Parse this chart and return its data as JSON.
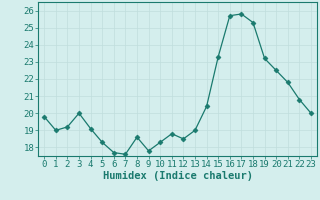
{
  "x": [
    0,
    1,
    2,
    3,
    4,
    5,
    6,
    7,
    8,
    9,
    10,
    11,
    12,
    13,
    14,
    15,
    16,
    17,
    18,
    19,
    20,
    21,
    22,
    23
  ],
  "y": [
    19.8,
    19.0,
    19.2,
    20.0,
    19.1,
    18.3,
    17.7,
    17.6,
    18.6,
    17.8,
    18.3,
    18.8,
    18.5,
    19.0,
    20.4,
    23.3,
    25.7,
    25.8,
    25.3,
    23.2,
    22.5,
    21.8,
    20.8,
    20.0
  ],
  "line_color": "#1a7a6e",
  "marker": "D",
  "marker_size": 2.5,
  "bg_color": "#d4eeed",
  "grid_color": "#c0dedd",
  "xlabel": "Humidex (Indice chaleur)",
  "ylim": [
    17.5,
    26.5
  ],
  "xlim": [
    -0.5,
    23.5
  ],
  "yticks": [
    18,
    19,
    20,
    21,
    22,
    23,
    24,
    25,
    26
  ],
  "xticks": [
    0,
    1,
    2,
    3,
    4,
    5,
    6,
    7,
    8,
    9,
    10,
    11,
    12,
    13,
    14,
    15,
    16,
    17,
    18,
    19,
    20,
    21,
    22,
    23
  ],
  "tick_color": "#1a7a6e",
  "spine_color": "#1a7a6e",
  "tick_fontsize": 6.5,
  "xlabel_fontsize": 7.5
}
